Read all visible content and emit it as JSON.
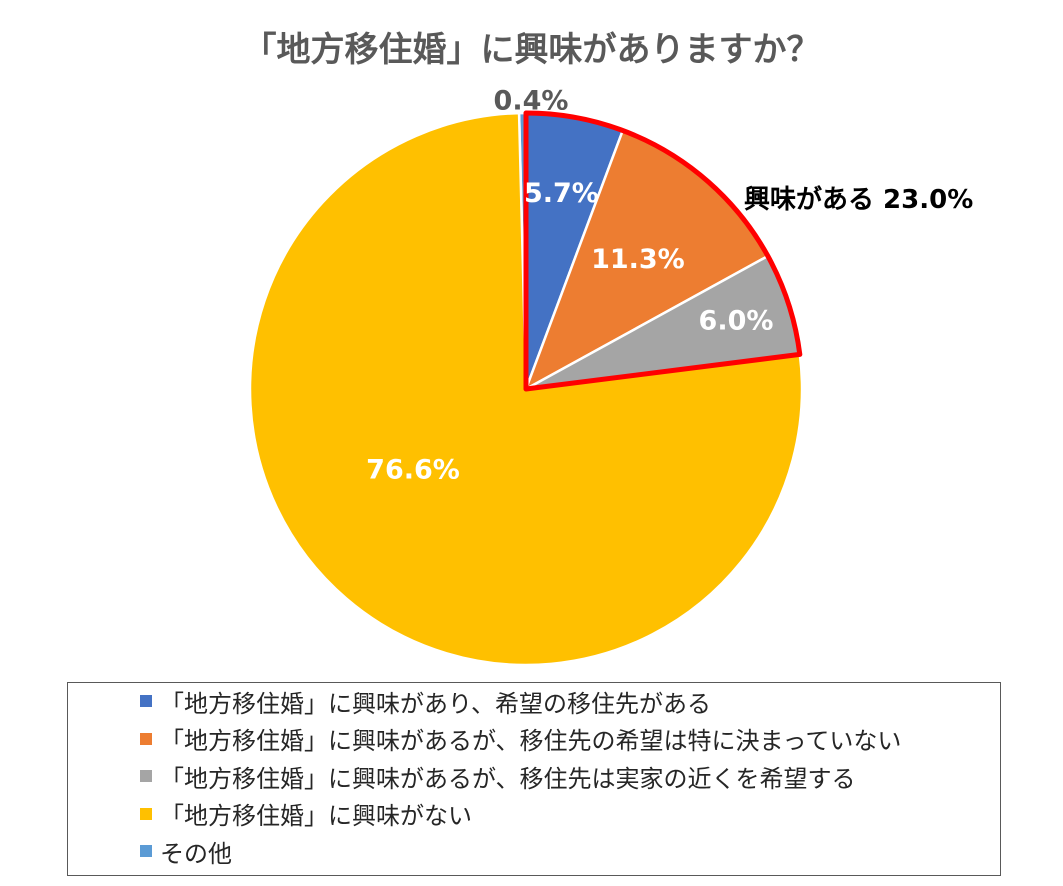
{
  "chart_data": {
    "type": "pie",
    "title": "「地方移住婚」に興味がありますか？",
    "slices": [
      {
        "label": "その他",
        "value": 0.4,
        "value_label": "0.4%",
        "color": "#5b9bd5"
      },
      {
        "label": "「地方移住婚」に興味があり、希望の移住先がある",
        "value": 5.7,
        "value_label": "5.7%",
        "color": "#4472c4"
      },
      {
        "label": "「地方移住婚」に興味があるが、移住先の希望は特に決まっていない",
        "value": 11.3,
        "value_label": "11.3%",
        "color": "#ed7d31"
      },
      {
        "label": "「地方移住婚」に興味があるが、移住先は実家の近くを希望する",
        "value": 6.0,
        "value_label": "6.0%",
        "color": "#a5a5a5"
      },
      {
        "label": "「地方移住婚」に興味がない",
        "value": 76.6,
        "value_label": "76.6%",
        "color": "#ffc000"
      }
    ],
    "annotation": {
      "text": "興味がある 23.0%",
      "highlight_color": "#ff0000"
    },
    "legend_placement": "bottom",
    "legend": [
      {
        "label": "「地方移住婚」に興味があり、希望の移住先がある",
        "color": "#4472c4"
      },
      {
        "label": "「地方移住婚」に興味があるが、移住先の希望は特に決まっていない",
        "color": "#ed7d31"
      },
      {
        "label": "「地方移住婚」に興味があるが、移住先は実家の近くを希望する",
        "color": "#a5a5a5"
      },
      {
        "label": "「地方移住婚」に興味がない",
        "color": "#ffc000"
      },
      {
        "label": "その他",
        "color": "#5b9bd5"
      }
    ]
  }
}
